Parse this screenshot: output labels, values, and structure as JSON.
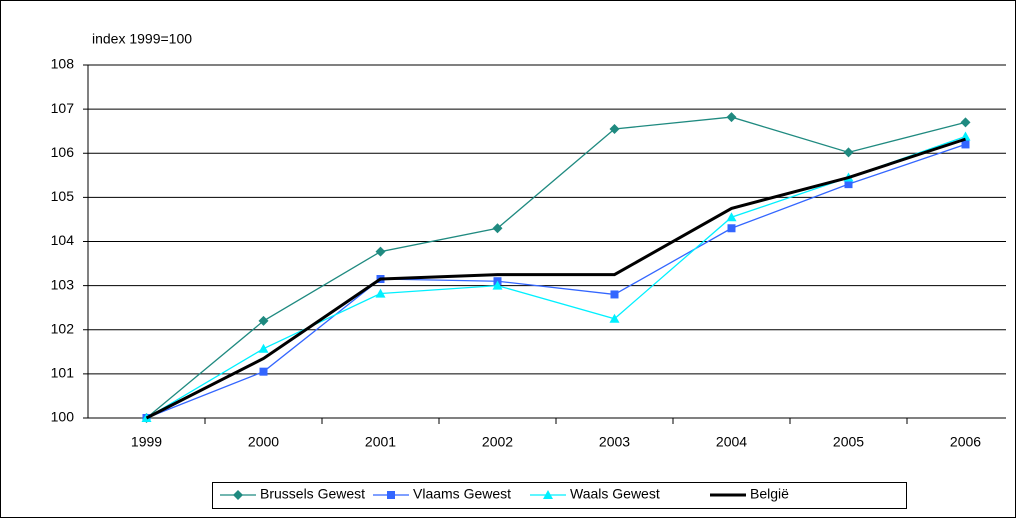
{
  "chart_data": {
    "type": "line",
    "y_label": "index 1999=100",
    "categories": [
      "1999",
      "2000",
      "2001",
      "2002",
      "2003",
      "2004",
      "2005",
      "2006"
    ],
    "series": [
      {
        "name": "Brussels Gewest",
        "color": "#1f8a80",
        "marker": "diamond",
        "values": [
          100,
          102.2,
          103.77,
          104.3,
          106.55,
          106.82,
          106.02,
          106.7
        ]
      },
      {
        "name": "Vlaams Gewest",
        "color": "#3366ff",
        "marker": "square",
        "values": [
          100,
          101.05,
          103.15,
          103.1,
          102.8,
          104.3,
          105.3,
          106.2
        ]
      },
      {
        "name": "Waals Gewest",
        "color": "#00f0ff",
        "marker": "triangle",
        "values": [
          100,
          101.57,
          102.82,
          103.0,
          102.25,
          104.55,
          105.45,
          106.38
        ]
      },
      {
        "name": "België",
        "color": "#000000",
        "marker": "none",
        "values": [
          100,
          101.35,
          103.15,
          103.25,
          103.25,
          104.75,
          105.45,
          106.32
        ]
      }
    ],
    "ylim": [
      100,
      108
    ],
    "yticks": [
      100,
      101,
      102,
      103,
      104,
      105,
      106,
      107,
      108
    ],
    "grid": true,
    "legend": "bottom"
  }
}
